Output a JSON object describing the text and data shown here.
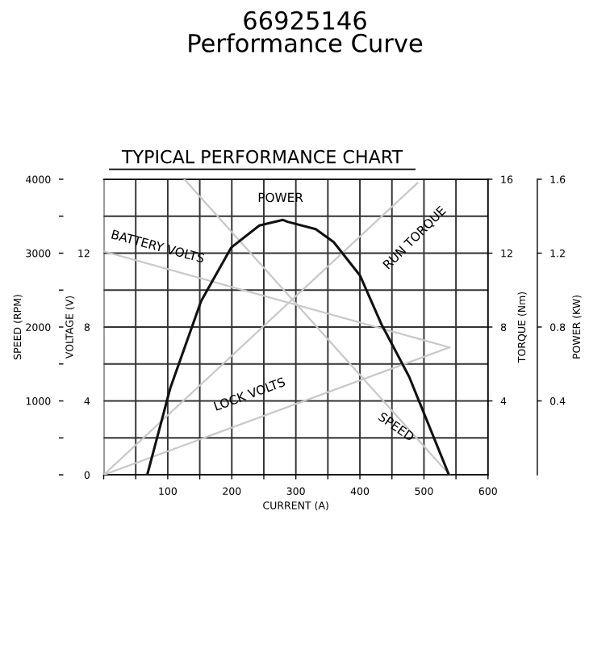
{
  "chart_data": [
    {
      "type": "line",
      "title": "66925146",
      "subtitle": "Performance Curve",
      "annotations": [
        "TYPICAL PERFORMANCE CHART",
        "BATTERY VOLTS",
        "LOCK VOLTS",
        "SPEED"
      ],
      "xlabel": "CURRENT (A)",
      "ylabel": "SPEED (RPM)",
      "y2label": "VOLTAGE (V)",
      "xlim": [
        0,
        600
      ],
      "xticks": [
        {
          "value": 0,
          "label": null
        },
        {
          "value": 50,
          "label": null
        },
        100,
        {
          "value": 150,
          "label": null
        },
        200,
        {
          "value": 250,
          "label": null
        },
        300,
        {
          "value": 350,
          "label": null
        },
        400,
        {
          "value": 450,
          "label": null
        },
        500,
        {
          "value": 550,
          "label": null
        },
        600
      ],
      "ylim": [
        0,
        4000
      ],
      "yticks": [
        {
          "value": 0,
          "label": null
        },
        {
          "value": 500,
          "label": null
        },
        1000,
        {
          "value": 1500,
          "label": null
        },
        2000,
        {
          "value": 2500,
          "label": null
        },
        3000,
        {
          "value": 3500,
          "label": null
        },
        4000
      ],
      "y2lim": [
        0,
        16
      ],
      "y2ticks": [
        0,
        4,
        8,
        12
      ],
      "grid": true,
      "legend": false,
      "marker": "none",
      "line_style": "solid",
      "series": [
        {
          "color": "#c8c8c8",
          "axis": "y2",
          "x": [
            0,
            540
          ],
          "values": [
            12.1,
            6.9
          ]
        },
        {
          "color": "#c8c8c8",
          "axis": "y2",
          "x": [
            0,
            540
          ],
          "values": [
            0,
            6.9
          ]
        },
        {
          "color": "#c8c8c8",
          "x": [
            126,
            540
          ],
          "values": [
            4000,
            0
          ]
        }
      ]
    },
    {
      "type": "line",
      "annotations": [
        "POWER",
        "RUN TORQUE"
      ],
      "ylabel": "TORQUE (Nm)",
      "y2label": "POWER (KW)",
      "xlim": [
        0,
        600
      ],
      "tick_labels": "y",
      "ylim": [
        0,
        16
      ],
      "yticks": [
        4,
        8,
        12,
        16
      ],
      "y2lim": [
        0,
        1.6
      ],
      "y2ticks": [
        0.4,
        0.8,
        1.2,
        1.6
      ],
      "legend": false,
      "marker": "none",
      "line_style": "solid",
      "series": [
        {
          "color": "#111111",
          "axis": "y2",
          "x": [
            68,
            104,
            152,
            199,
            243,
            280,
            287,
            331,
            359,
            400,
            433,
            477,
            539
          ],
          "values": [
            0,
            0.47,
            0.94,
            1.23,
            1.35,
            1.38,
            1.37,
            1.33,
            1.26,
            1.08,
            0.82,
            0.53,
            0
          ]
        },
        {
          "color": "#c8c8c8",
          "x": [
            0,
            490
          ],
          "values": [
            0,
            15.8
          ]
        }
      ]
    }
  ]
}
